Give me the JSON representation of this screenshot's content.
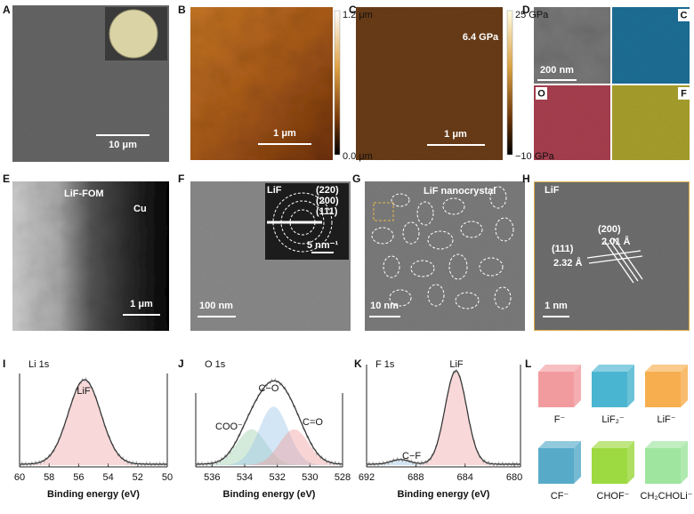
{
  "panels": {
    "A": {
      "label": "A",
      "scale_bar": "10 μm"
    },
    "B": {
      "label": "B",
      "scale_bar": "1 μm",
      "colorbar_max": "1.2 μm",
      "colorbar_min": "0.0 μm"
    },
    "C": {
      "label": "C",
      "annotation": "6.4 GPa",
      "scale_bar": "1 μm",
      "colorbar_max": "25 GPa",
      "colorbar_min": "−10 GPa"
    },
    "D": {
      "label": "D",
      "scale_bar": "200 nm",
      "maps": [
        "C",
        "O",
        "F"
      ]
    },
    "E": {
      "label": "E",
      "region_left": "LiF-FOM",
      "region_right": "Cu",
      "scale_bar": "1 μm"
    },
    "F": {
      "label": "F",
      "inset_title": "LiF",
      "rings": [
        "(220)",
        "(200)",
        "(111)"
      ],
      "inset_scale": "5 nm⁻¹",
      "scale_bar": "100 nm"
    },
    "G": {
      "label": "G",
      "annotation": "LiF  nanocrystal",
      "scale_bar": "10 nm"
    },
    "H": {
      "label": "H",
      "inset_title": "LiF",
      "plane_a": "(200)",
      "spacing_a": "2.01 Å",
      "plane_b": "(111)",
      "spacing_b": "2.32 Å",
      "scale_bar": "1 nm"
    },
    "I": {
      "label": "I",
      "title": "Li 1s",
      "peaks": [
        "LiF"
      ],
      "xlim": [
        60,
        50
      ],
      "xticks": [
        60,
        58,
        56,
        54,
        52,
        50
      ],
      "xlabel": "Binding energy (eV)"
    },
    "J": {
      "label": "J",
      "title": "O 1s",
      "peaks": [
        "C−O",
        "COO⁻",
        "C=O"
      ],
      "xlim": [
        537,
        528
      ],
      "xticks": [
        536,
        534,
        532,
        530,
        528
      ],
      "xlabel": "Binding energy (eV)"
    },
    "K": {
      "label": "K",
      "title": "F 1s",
      "peaks": [
        "LiF",
        "C−F"
      ],
      "xlim": [
        692,
        679.5
      ],
      "xticks": [
        692,
        688,
        684,
        680
      ],
      "xlabel": "Binding energy (eV)"
    },
    "L": {
      "label": "L",
      "cubes": [
        {
          "name": "F⁻",
          "color": "#f08a8e"
        },
        {
          "name": "LiF₂⁻",
          "color": "#2aa8c8"
        },
        {
          "name": "LiF⁻",
          "color": "#f6a030"
        },
        {
          "name": "CF⁻",
          "color": "#3a9cc0"
        },
        {
          "name": "CHOF⁻",
          "color": "#8cd21e"
        },
        {
          "name": "CH₂CHOLi⁻",
          "color": "#8ee08e"
        }
      ]
    }
  }
}
